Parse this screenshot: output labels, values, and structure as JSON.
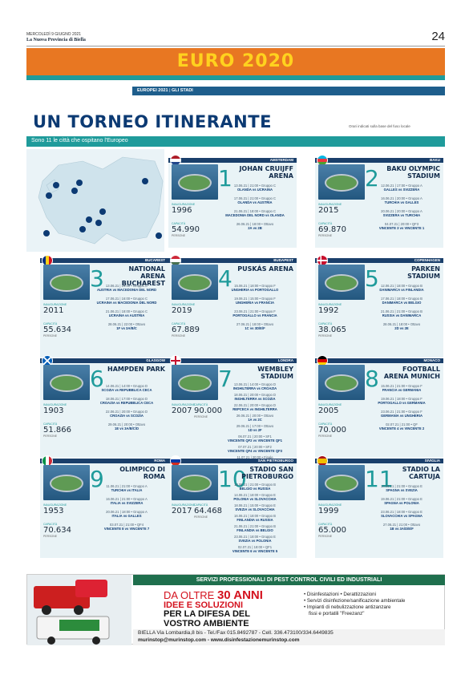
{
  "header": {
    "dateline": "MERCOLEDÌ 9 GIUGNO 2021",
    "paper": "La Nuova Provincia di Biella",
    "page_number": "24"
  },
  "banner": {
    "title": "EURO 2020"
  },
  "section": {
    "left": "EUROPEI 2021",
    "sep": "|",
    "right": "GLI STADI"
  },
  "headline": "UN TORNEO ITINERANTE",
  "note": "Orari indicati sulla base del fuso locale",
  "subhead": "Sono 11 le città che ospitano l'Europeo",
  "labels": {
    "inaug": "INAUGURAZIONE",
    "cap": "CAPACITÀ",
    "persons": "PERSONE"
  },
  "cards": [
    {
      "city": "AMSTERDAM",
      "num": "1",
      "name": "JOHAN CRUIJFF ARENA",
      "inaug": "1996",
      "cap": "54.990",
      "matches": [
        [
          "13.06.21 | 21:00 • Gruppo C",
          "OLANDA vs UCRAINA"
        ],
        [
          "17.06.21 | 21:00 • Gruppo C",
          "OLANDA vs AUSTRIA"
        ],
        [
          "21.06.21 | 18:00 • Gruppo C",
          "MACEDONIA DEL NORD vs OLANDA"
        ],
        [
          "26.06.21 | 18:00 • Ottavo",
          "2A vs 2B"
        ]
      ]
    },
    {
      "city": "BAKU",
      "num": "2",
      "name": "BAKU OLYMPIC STADIUM",
      "inaug": "2015",
      "cap": "69.870",
      "matches": [
        [
          "12.06.21 | 17:00 • Gruppo A",
          "GALLES vs SVIZZERA"
        ],
        [
          "16.06.21 | 20:00 • Gruppo A",
          "TURCHIA vs GALLES"
        ],
        [
          "20.06.21 | 20:00 • Gruppo A",
          "SVIZZERA vs TURCHIA"
        ],
        [
          "04.07.21 | 20:00 • QF3",
          "VINCENTE 3 vs VINCENTE 1"
        ]
      ]
    },
    {
      "city": "BUCAREST",
      "num": "3",
      "name": "NATIONAL ARENA BUCHAREST",
      "inaug": "2011",
      "cap": "55.634",
      "matches": [
        [
          "13.06.21 | 19:00 • Gruppo C",
          "AUSTRIA vs MACEDONIA DEL NORD"
        ],
        [
          "17.06.21 | 16:00 • Gruppo C",
          "UCRAINA vs MACEDONIA DEL NORD"
        ],
        [
          "21.06.21 | 18:00 • Gruppo C",
          "UCRAINA vs AUSTRIA"
        ],
        [
          "28.06.21 | 22:00 • Ottavo",
          "1F vs 3A/B/C"
        ]
      ]
    },
    {
      "city": "BUDAPEST",
      "num": "4",
      "name": "PUSKÁS ARENA",
      "inaug": "2019",
      "cap": "67.889",
      "matches": [
        [
          "15.06.21 | 18:00 • Gruppo F",
          "UNGHERIA vs PORTOGALLO"
        ],
        [
          "19.06.21 | 15:00 • Gruppo F",
          "UNGHERIA vs FRANCIA"
        ],
        [
          "23.06.21 | 21:00 • Gruppo F",
          "PORTOGALLO vs FRANCIA"
        ],
        [
          "27.06.21 | 18:00 • Ottavo",
          "1C vs 3D/E/F"
        ]
      ]
    },
    {
      "city": "COPENHAGEN",
      "num": "5",
      "name": "PARKEN STADIUM",
      "inaug": "1992",
      "cap": "38.065",
      "matches": [
        [
          "12.06.21 | 18:00 • Gruppo B",
          "DANIMARCA vs FINLANDIA"
        ],
        [
          "17.06.21 | 18:00 • Gruppo B",
          "DANIMARCA vs BELGIO"
        ],
        [
          "21.06.21 | 21:00 • Gruppo B",
          "RUSSIA vs DANIMARCA"
        ],
        [
          "28.06.21 | 18:00 • Ottavo",
          "2D vs 2E"
        ]
      ]
    },
    {
      "city": "GLASGOW",
      "num": "6",
      "name": "HAMPDEN PARK",
      "inaug": "1903",
      "cap": "51.866",
      "matches": [
        [
          "14.06.21 | 14:00 • Gruppo D",
          "SCOZIA vs REPUBBLICA CECA"
        ],
        [
          "18.06.21 | 17:00 • Gruppo D",
          "CROAZIA vs REPUBBLICA CECA"
        ],
        [
          "22.06.21 | 20:00 • Gruppo D",
          "CROAZIA vs SCOZIA"
        ],
        [
          "29.06.21 | 20:00 • Ottavo",
          "1E vs 3A/B/C/D"
        ]
      ]
    },
    {
      "city": "LONDRA",
      "num": "7",
      "name": "WEMBLEY STADIUM",
      "inaug": "2007",
      "cap": "90.000",
      "matches": [
        [
          "13.06.21 | 14:00 • Gruppo D",
          "INGHILTERRA vs CROAZIA"
        ],
        [
          "18.06.21 | 20:00 • Gruppo D",
          "INGHILTERRA vs SCOZIA"
        ],
        [
          "22.06.21 | 20:00 • Gruppo D",
          "REPCECA vs INGHILTERRA"
        ],
        [
          "26.06.21 | 20:00 • Ottavo",
          "1A vs 2C"
        ],
        [
          "29.06.21 | 17:00 • Ottavo",
          "1D vs 2F"
        ],
        [
          "06.07.21 | 20:00 • SF1",
          "VINCENTE QF2 vs VINCENTE QF1"
        ],
        [
          "07.07.21 | 20:00 • SF2",
          "VINCENTE QF4 vs VINCENTE QF3"
        ],
        [
          "11.07.21 | 20:00 • Finale",
          "VINCENTE SF1 vs VINCENTE SF2"
        ]
      ]
    },
    {
      "city": "MONACO",
      "num": "8",
      "name": "FOOTBALL ARENA MUNICH",
      "inaug": "2005",
      "cap": "70.000",
      "matches": [
        [
          "15.06.21 | 21:00 • Gruppo F",
          "FRANCIA vs GERMANIA"
        ],
        [
          "19.06.21 | 18:00 • Gruppo F",
          "PORTOGALLO vs GERMANIA"
        ],
        [
          "23.06.21 | 21:00 • Gruppo F",
          "GERMANIA vs UNGHERIA"
        ],
        [
          "02.07.21 | 21:00 • QF",
          "VINCENTE 4 vs VINCENTE 2"
        ]
      ]
    },
    {
      "city": "ROMA",
      "num": "9",
      "name": "OLIMPICO DI ROMA",
      "inaug": "1953",
      "cap": "70.634",
      "matches": [
        [
          "11.06.21 | 21:00 • Gruppo A",
          "TURCHIA vs ITALIA"
        ],
        [
          "16.06.21 | 21:00 • Gruppo A",
          "ITALIA vs SVIZZERA"
        ],
        [
          "20.06.21 | 18:00 • Gruppo A",
          "ITALIA vs GALLES"
        ],
        [
          "03.07.21 | 21:00 • QF4",
          "VINCENTE 8 vs VINCENTE 7"
        ]
      ]
    },
    {
      "city": "SAN PIETROBURGO",
      "num": "10",
      "name": "STADIO SAN PIETROBURGO",
      "inaug": "2017",
      "cap": "64.468",
      "matches": [
        [
          "12.06.21 | 21:00 • Gruppo B",
          "BELGIO vs RUSSIA"
        ],
        [
          "14.06.21 | 18:00 • Gruppo E",
          "POLONIA vs SLOVACCHIA"
        ],
        [
          "18.06.21 | 15:00 • Gruppo E",
          "SVEZIA vs SLOVACCHIA"
        ],
        [
          "16.06.21 | 18:00 • Gruppo B",
          "FINLANDIA vs RUSSIA"
        ],
        [
          "21.06.21 | 21:00 • Gruppo B",
          "FINLANDIA vs BELGIO"
        ],
        [
          "23.06.21 | 18:00 • Gruppo E",
          "SVEZIA vs POLONIA"
        ],
        [
          "02.07.21 | 18:00 • QF1",
          "VINCENTE 6 vs VINCENTE 5"
        ]
      ]
    },
    {
      "city": "SIVIGLIA",
      "num": "11",
      "name": "STADIO LA CARTUJA",
      "inaug": "1999",
      "cap": "65.000",
      "matches": [
        [
          "14.06.21 | 21:00 • Gruppo E",
          "SPAGNA vs SVEZIA"
        ],
        [
          "19.06.21 | 21:00 • Gruppo E",
          "SPAGNA vs POLONIA"
        ],
        [
          "23.06.21 | 18:00 • Gruppo E",
          "SLOVACCHIA vs SPAGNA"
        ],
        [
          "27.06.21 | 21:00 • Ottavo",
          "1B vs 3A/D/E/F"
        ]
      ]
    }
  ],
  "ad": {
    "title": "SERVIZI PROFESSIONALI DI PEST CONTROL CIVILI ED INDUSTRIALI",
    "line1_pre": "DA OLTRE",
    "line1_big": "30 ANNI",
    "line2": "IDEE E SOLUZIONI",
    "line3": "PER LA DIFESA DEL",
    "line4": "VOSTRO AMBIENTE",
    "services": [
      "• Disinfestazioni • Derattizzazioni",
      "• Servizi disinfezione/sanificazione ambientale",
      "• Impianti di nebulizzazione antizanzare",
      "fissi e portatili \"Freezanz\""
    ],
    "contact1": "BIELLA Via Lombardia,8 bis - Tel./Fax 015.8492787 - Cell. 336.473100/334.6449835",
    "contact2": "murinstop@murinstop.com - www.disinfestazionemurinstop.com"
  },
  "colors": {
    "teal": "#1f9b9b",
    "navy": "#0c3a73",
    "orange": "#e87722",
    "yellow": "#ffd21e",
    "green": "#1f6f4d",
    "red": "#d4121e"
  }
}
